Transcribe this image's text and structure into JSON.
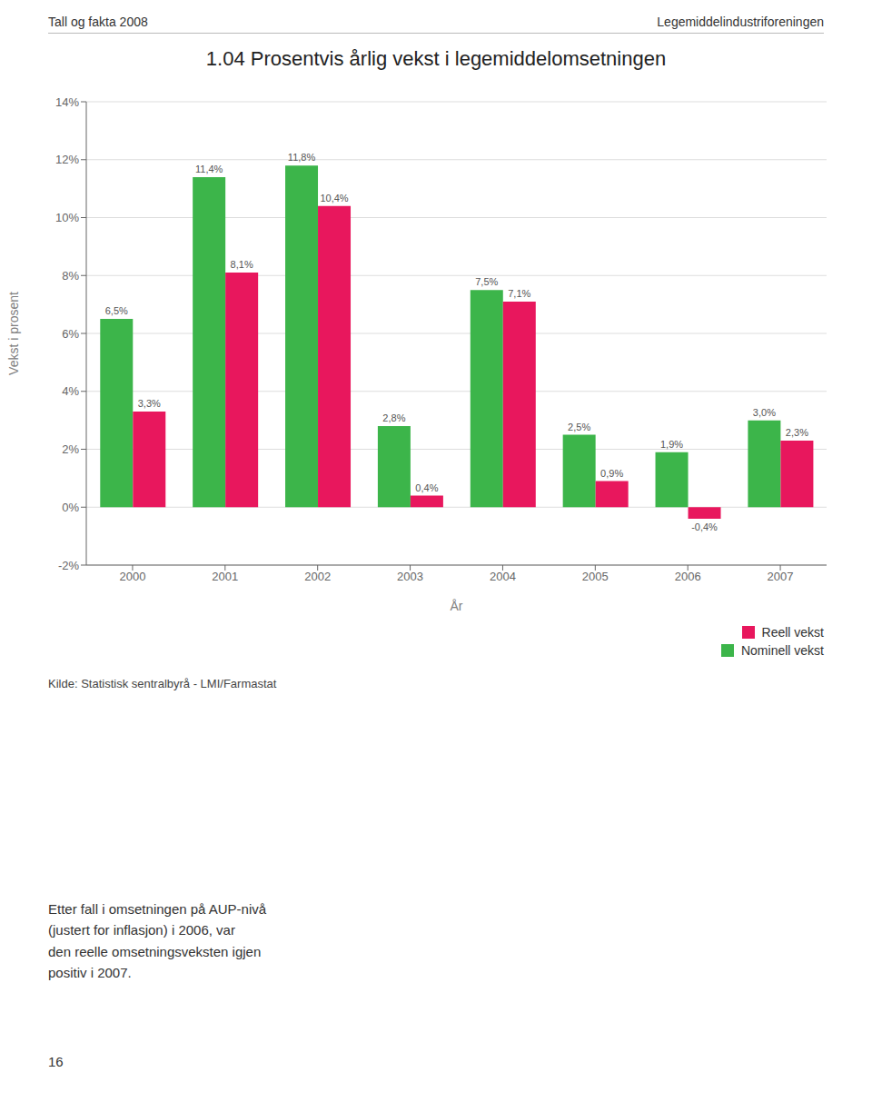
{
  "chart_data": {
    "type": "bar",
    "title": "1.04 Prosentvis årlig vekst i legemiddelomsetningen",
    "annotations": [
      "Tall og fakta 2008",
      "Legemiddelindustriforeningen",
      "Kilde: Statistisk sentralbyrå - LMI/Farmastat",
      "Etter fall i omsetningen på AUP-nivå\n(justert for inflasjon) i 2006, var\nden reelle omsetningsveksten igjen\npositiv i 2007.",
      "16"
    ],
    "categories": [
      "2000",
      "2001",
      "2002",
      "2003",
      "2004",
      "2005",
      "2006",
      "2007"
    ],
    "series": [
      {
        "name": "Nominell vekst",
        "color": "#3cb54a",
        "values": [
          6.5,
          11.4,
          11.8,
          2.8,
          7.5,
          2.5,
          1.9,
          3.0
        ],
        "value_labels": [
          "6,5%",
          "11,4%",
          "11,8%",
          "2,8%",
          "7,5%",
          "2,5%",
          "1,9%",
          "3,0%"
        ]
      },
      {
        "name": "Reell vekst",
        "color": "#e8175d",
        "values": [
          3.3,
          8.1,
          10.4,
          0.4,
          7.1,
          0.9,
          -0.4,
          2.3
        ],
        "value_labels": [
          "3,3%",
          "8,1%",
          "10,4%",
          "0,4%",
          "7,1%",
          "0,9%",
          "-0,4%",
          "2,3%"
        ]
      }
    ],
    "xlabel": "År",
    "ylabel": "Vekst i prosent",
    "ylim": [
      -2,
      14
    ],
    "yticks": [
      {
        "value": -2,
        "label": "-2%"
      },
      {
        "value": 0,
        "label": "0%"
      },
      {
        "value": 2,
        "label": "2%"
      },
      {
        "value": 4,
        "label": "4%"
      },
      {
        "value": 6,
        "label": "6%"
      },
      {
        "value": 8,
        "label": "8%"
      },
      {
        "value": 10,
        "label": "10%"
      },
      {
        "value": 12,
        "label": "12%"
      },
      {
        "value": 14,
        "label": "14%"
      }
    ],
    "grid": true,
    "legend": "lower right",
    "data_labels": true
  }
}
